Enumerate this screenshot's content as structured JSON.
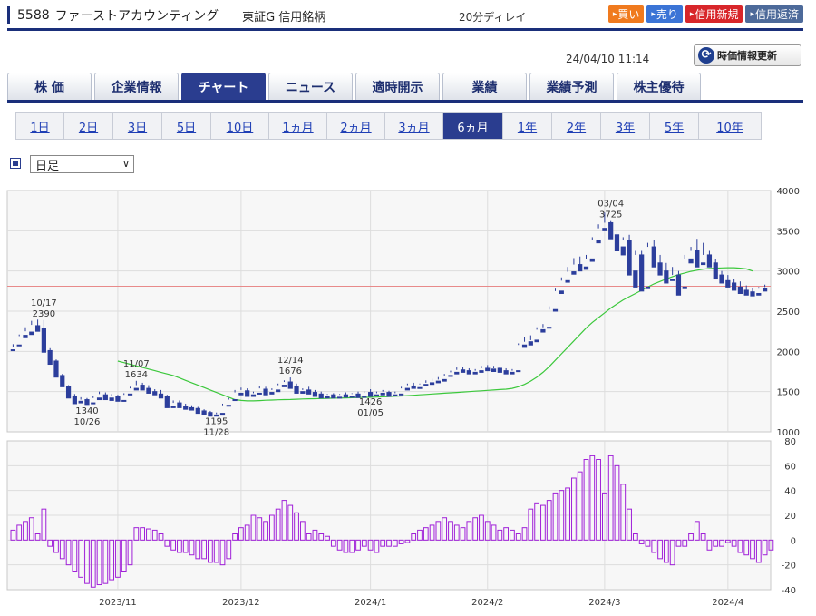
{
  "header": {
    "code": "5588",
    "name": "ファーストアカウンティング",
    "market": "東証G",
    "margin_type": "信用銘柄",
    "delay": "20分ディレイ",
    "buttons": [
      {
        "label": "買い",
        "color": "#f07a1e"
      },
      {
        "label": "売り",
        "color": "#3b74d6"
      },
      {
        "label": "信用新規",
        "color": "#d8262a"
      },
      {
        "label": "信用返済",
        "color": "#4d6a9a"
      }
    ]
  },
  "timestamp": "24/04/10 11:14",
  "refresh_label": "時価情報更新",
  "main_tabs": [
    "株 価",
    "企業情報",
    "チャート",
    "ニュース",
    "適時開示",
    "業績",
    "業績予測",
    "株主優待"
  ],
  "main_tab_active": 2,
  "period_tabs": [
    "1日",
    "2日",
    "3日",
    "5日",
    "10日",
    "1ヵ月",
    "2ヵ月",
    "3ヵ月",
    "6ヵ月",
    "1年",
    "2年",
    "3年",
    "5年",
    "10年"
  ],
  "period_tab_active": 8,
  "select_value": "日足",
  "colors": {
    "up": "#e0303a",
    "down": "#2c3e9c",
    "ma": "#3cc83c",
    "osc": "#a020d8",
    "refline": "#e88a8a"
  },
  "chart_data": [
    {
      "type": "candlestick",
      "ylim": [
        1000,
        4000
      ],
      "yticks": [
        1000,
        1500,
        2000,
        2500,
        3000,
        3500,
        4000
      ],
      "xticks": [
        {
          "label": "2023/11",
          "index": 17
        },
        {
          "label": "2023/12",
          "index": 37
        },
        {
          "label": "2024/1",
          "index": 58
        },
        {
          "label": "2024/2",
          "index": 77
        },
        {
          "label": "2024/3",
          "index": 96
        },
        {
          "label": "2024/4",
          "index": 116
        }
      ],
      "reference_price": 2810,
      "annotations": [
        {
          "date": "10/17",
          "value": "2390",
          "index": 5,
          "pos": "above"
        },
        {
          "date": "11/07",
          "value": "1634",
          "index": 20,
          "pos": "above"
        },
        {
          "date": "10/26",
          "value": "1340",
          "index": 12,
          "pos": "below"
        },
        {
          "date": "11/28",
          "value": "1195",
          "index": 33,
          "pos": "below"
        },
        {
          "date": "12/14",
          "value": "1676",
          "index": 45,
          "pos": "above"
        },
        {
          "date": "01/05",
          "value": "1426",
          "index": 58,
          "pos": "below"
        },
        {
          "date": "03/04",
          "value": "3725",
          "index": 97,
          "pos": "above"
        }
      ],
      "candles": [
        [
          2020,
          2090,
          2060,
          2010
        ],
        [
          2080,
          2210,
          2190,
          2070
        ],
        [
          2200,
          2300,
          2250,
          2170
        ],
        [
          2240,
          2380,
          2330,
          2210
        ],
        [
          2320,
          2395,
          2280,
          2250
        ],
        [
          2290,
          2390,
          2020,
          1990
        ],
        [
          2010,
          2040,
          1860,
          1840
        ],
        [
          1880,
          1900,
          1700,
          1680
        ],
        [
          1700,
          1720,
          1580,
          1560
        ],
        [
          1560,
          1580,
          1440,
          1420
        ],
        [
          1440,
          1470,
          1380,
          1350
        ],
        [
          1380,
          1430,
          1400,
          1360
        ],
        [
          1400,
          1420,
          1350,
          1340
        ],
        [
          1360,
          1440,
          1420,
          1350
        ],
        [
          1420,
          1500,
          1470,
          1400
        ],
        [
          1460,
          1490,
          1420,
          1400
        ],
        [
          1420,
          1470,
          1440,
          1390
        ],
        [
          1440,
          1460,
          1400,
          1380
        ],
        [
          1390,
          1480,
          1460,
          1380
        ],
        [
          1470,
          1560,
          1540,
          1460
        ],
        [
          1540,
          1634,
          1580,
          1520
        ],
        [
          1580,
          1610,
          1540,
          1520
        ],
        [
          1540,
          1580,
          1500,
          1480
        ],
        [
          1500,
          1530,
          1480,
          1460
        ],
        [
          1470,
          1520,
          1440,
          1420
        ],
        [
          1440,
          1460,
          1320,
          1300
        ],
        [
          1320,
          1390,
          1360,
          1300
        ],
        [
          1360,
          1390,
          1320,
          1300
        ],
        [
          1320,
          1350,
          1300,
          1280
        ],
        [
          1300,
          1330,
          1290,
          1270
        ],
        [
          1290,
          1310,
          1260,
          1230
        ],
        [
          1260,
          1280,
          1240,
          1220
        ],
        [
          1240,
          1260,
          1210,
          1195
        ],
        [
          1210,
          1240,
          1220,
          1195
        ],
        [
          1230,
          1350,
          1330,
          1220
        ],
        [
          1330,
          1420,
          1400,
          1320
        ],
        [
          1400,
          1520,
          1490,
          1390
        ],
        [
          1480,
          1550,
          1520,
          1460
        ],
        [
          1510,
          1540,
          1460,
          1440
        ],
        [
          1460,
          1500,
          1480,
          1440
        ],
        [
          1480,
          1570,
          1540,
          1470
        ],
        [
          1530,
          1560,
          1490,
          1460
        ],
        [
          1490,
          1540,
          1520,
          1470
        ],
        [
          1520,
          1600,
          1580,
          1500
        ],
        [
          1580,
          1640,
          1620,
          1560
        ],
        [
          1620,
          1676,
          1560,
          1540
        ],
        [
          1560,
          1600,
          1500,
          1480
        ],
        [
          1500,
          1540,
          1520,
          1480
        ],
        [
          1520,
          1560,
          1490,
          1470
        ],
        [
          1490,
          1520,
          1470,
          1440
        ],
        [
          1470,
          1500,
          1440,
          1420
        ],
        [
          1440,
          1470,
          1460,
          1420
        ],
        [
          1460,
          1480,
          1430,
          1420
        ],
        [
          1430,
          1470,
          1460,
          1420
        ],
        [
          1460,
          1490,
          1440,
          1430
        ],
        [
          1440,
          1480,
          1470,
          1430
        ],
        [
          1470,
          1500,
          1440,
          1426
        ],
        [
          1440,
          1500,
          1490,
          1430
        ],
        [
          1490,
          1530,
          1460,
          1440
        ],
        [
          1460,
          1500,
          1480,
          1450
        ],
        [
          1480,
          1520,
          1500,
          1460
        ],
        [
          1490,
          1510,
          1460,
          1440
        ],
        [
          1460,
          1500,
          1480,
          1450
        ],
        [
          1470,
          1560,
          1540,
          1460
        ],
        [
          1540,
          1600,
          1580,
          1520
        ],
        [
          1570,
          1610,
          1550,
          1540
        ],
        [
          1550,
          1600,
          1590,
          1540
        ],
        [
          1590,
          1640,
          1610,
          1570
        ],
        [
          1610,
          1660,
          1630,
          1590
        ],
        [
          1630,
          1680,
          1650,
          1610
        ],
        [
          1650,
          1720,
          1700,
          1630
        ],
        [
          1700,
          1760,
          1740,
          1690
        ],
        [
          1740,
          1800,
          1770,
          1720
        ],
        [
          1770,
          1810,
          1760,
          1740
        ],
        [
          1760,
          1790,
          1740,
          1720
        ],
        [
          1740,
          1780,
          1760,
          1720
        ],
        [
          1760,
          1820,
          1790,
          1740
        ],
        [
          1790,
          1830,
          1780,
          1760
        ],
        [
          1780,
          1820,
          1790,
          1750
        ],
        [
          1790,
          1810,
          1760,
          1740
        ],
        [
          1760,
          1790,
          1740,
          1720
        ],
        [
          1740,
          1780,
          1760,
          1720
        ],
        [
          1760,
          2100,
          2080,
          1750
        ],
        [
          2080,
          2180,
          2120,
          2050
        ],
        [
          2120,
          2200,
          2140,
          2080
        ],
        [
          2140,
          2300,
          2270,
          2120
        ],
        [
          2270,
          2340,
          2300,
          2240
        ],
        [
          2300,
          2560,
          2520,
          2290
        ],
        [
          2520,
          2780,
          2750,
          2500
        ],
        [
          2750,
          2920,
          2880,
          2720
        ],
        [
          2880,
          3050,
          2990,
          2860
        ],
        [
          2990,
          3160,
          3080,
          2960
        ],
        [
          3080,
          3180,
          3050,
          3000
        ],
        [
          3050,
          3200,
          3150,
          3020
        ],
        [
          3150,
          3420,
          3380,
          3120
        ],
        [
          3380,
          3580,
          3530,
          3350
        ],
        [
          3530,
          3725,
          3600,
          3500
        ],
        [
          3600,
          3620,
          3450,
          3400
        ],
        [
          3450,
          3500,
          3300,
          3250
        ],
        [
          3300,
          3420,
          3380,
          3200
        ],
        [
          3380,
          3450,
          3000,
          2950
        ],
        [
          3000,
          3250,
          3200,
          2800
        ],
        [
          3200,
          3250,
          2800,
          2750
        ],
        [
          2800,
          3350,
          3300,
          2780
        ],
        [
          3300,
          3380,
          3100,
          3050
        ],
        [
          3100,
          3200,
          3000,
          2950
        ],
        [
          3000,
          3100,
          2900,
          2850
        ],
        [
          2900,
          3050,
          2950,
          2880
        ],
        [
          2950,
          3000,
          2800,
          2700
        ],
        [
          2800,
          3200,
          3150,
          2780
        ],
        [
          3150,
          3300,
          3250,
          3100
        ],
        [
          3250,
          3400,
          3100,
          3050
        ],
        [
          3100,
          3350,
          3200,
          3080
        ],
        [
          3200,
          3250,
          3100,
          3050
        ],
        [
          3100,
          3150,
          2950,
          2900
        ],
        [
          2950,
          3000,
          2880,
          2850
        ],
        [
          2880,
          2950,
          2850,
          2800
        ],
        [
          2850,
          2900,
          2800,
          2760
        ],
        [
          2800,
          2870,
          2760,
          2720
        ],
        [
          2760,
          2820,
          2740,
          2700
        ],
        [
          2740,
          2790,
          2720,
          2690
        ],
        [
          2720,
          2800,
          2780,
          2700
        ],
        [
          2780,
          2830,
          2800,
          2750
        ]
      ],
      "moving_average": [
        null,
        null,
        null,
        null,
        null,
        null,
        null,
        null,
        null,
        null,
        null,
        null,
        null,
        null,
        null,
        null,
        null,
        1880,
        1860,
        1840,
        1820,
        1800,
        1780,
        1760,
        1740,
        1720,
        1700,
        1670,
        1640,
        1610,
        1580,
        1550,
        1520,
        1490,
        1460,
        1430,
        1400,
        1390,
        1385,
        1385,
        1388,
        1392,
        1395,
        1398,
        1400,
        1402,
        1405,
        1408,
        1410,
        1412,
        1414,
        1416,
        1418,
        1420,
        1422,
        1424,
        1426,
        1428,
        1430,
        1432,
        1435,
        1438,
        1442,
        1446,
        1450,
        1455,
        1460,
        1465,
        1470,
        1475,
        1480,
        1485,
        1490,
        1495,
        1500,
        1505,
        1510,
        1515,
        1520,
        1525,
        1530,
        1540,
        1560,
        1590,
        1630,
        1680,
        1740,
        1810,
        1890,
        1970,
        2050,
        2130,
        2210,
        2290,
        2360,
        2420,
        2480,
        2540,
        2590,
        2640,
        2680,
        2720,
        2760,
        2800,
        2840,
        2870,
        2900,
        2930,
        2955,
        2975,
        2995,
        3010,
        3022,
        3030,
        3035,
        3038,
        3040,
        3040,
        3035,
        3025,
        3000
      ]
    },
    {
      "type": "bar",
      "ylim": [
        -40,
        80
      ],
      "yticks": [
        -40,
        -20,
        0,
        20,
        40,
        60,
        80
      ],
      "values": [
        8,
        12,
        15,
        18,
        5,
        25,
        -5,
        -10,
        -15,
        -20,
        -25,
        -30,
        -35,
        -38,
        -36,
        -35,
        -32,
        -30,
        -25,
        -20,
        10,
        10,
        9,
        8,
        5,
        -5,
        -8,
        -10,
        -10,
        -12,
        -15,
        -15,
        -18,
        -18,
        -20,
        -15,
        5,
        10,
        12,
        20,
        18,
        15,
        20,
        25,
        32,
        28,
        22,
        15,
        5,
        8,
        5,
        3,
        -5,
        -8,
        -10,
        -10,
        -8,
        -5,
        -8,
        -10,
        -5,
        -5,
        -5,
        -3,
        -2,
        5,
        8,
        10,
        12,
        15,
        18,
        15,
        12,
        10,
        15,
        18,
        20,
        15,
        12,
        8,
        10,
        8,
        5,
        10,
        25,
        30,
        28,
        32,
        38,
        40,
        42,
        50,
        55,
        65,
        68,
        65,
        38,
        68,
        60,
        45,
        25,
        5,
        -3,
        -5,
        -10,
        -15,
        -18,
        -20,
        -5,
        -5,
        5,
        15,
        5,
        -8,
        -5,
        -5,
        -2,
        -5,
        -10,
        -12,
        -15,
        -18,
        -12,
        -8
      ]
    }
  ]
}
